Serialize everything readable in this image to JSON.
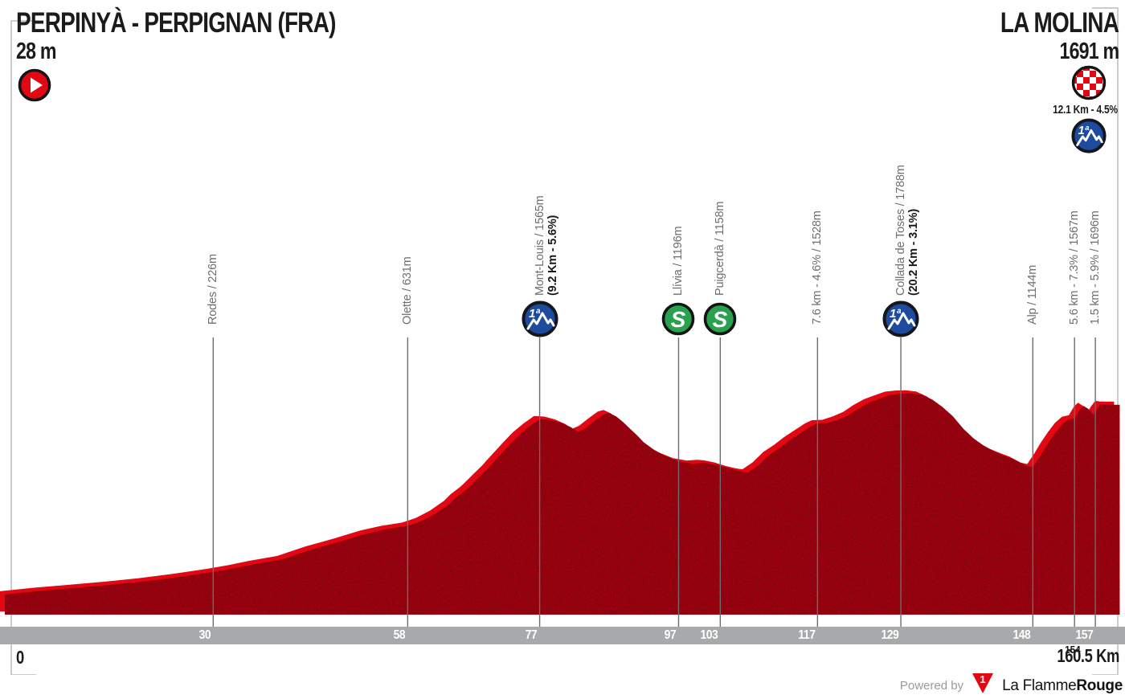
{
  "header": {
    "start_name": "PERPINYÀ - PERPIGNAN (FRA)",
    "start_elevation": "28 m",
    "finish_name": "LA MOLINA",
    "finish_elevation": "1691 m",
    "finish_climb_stats": "12.1 Km - 4.5%"
  },
  "icons": {
    "start": "play-icon",
    "finish": "checkered-flag-icon",
    "cat1_label": "1ª",
    "sprint_label": "S"
  },
  "colors": {
    "profile_fill": "#ab1016",
    "profile_edge": "#e30613",
    "axis_band": "#a7a9ab",
    "cat1_blue": "#1e4b9e",
    "sprint_green": "#28a24e",
    "label_gray": "#6d6e70",
    "marker_line": "#6b6c6e"
  },
  "axis": {
    "start_label": "0",
    "end_label": "160.5 Km",
    "band_ticks": [
      30,
      58,
      77,
      97,
      103,
      117,
      129,
      148,
      157
    ],
    "below_ticks": [
      154
    ]
  },
  "footer": {
    "powered_by": "Powered by",
    "brand_regular": "La Flamme",
    "brand_bold": "Rouge",
    "brand_badge": "1"
  },
  "chart_data": {
    "type": "area",
    "x_unit": "km",
    "y_unit": "m",
    "x_range": [
      0,
      160.5
    ],
    "grid": false,
    "start": {
      "name": "Perpinyà - Perpignan (FRA)",
      "elevation_m": 28
    },
    "finish": {
      "name": "La Molina",
      "elevation_m": 1691,
      "final_climb": "12.1 Km - 4.5%"
    },
    "markers": [
      {
        "km": 30,
        "label": "Rodes / 226m",
        "type": "landmark"
      },
      {
        "km": 58,
        "label": "Olette / 631m",
        "type": "landmark"
      },
      {
        "km": 77,
        "label": "Mont-Louis / 1565m",
        "stats": "(9.2 Km - 5.6%)",
        "type": "climb-cat1"
      },
      {
        "km": 97,
        "label": "Llívia / 1196m",
        "type": "sprint"
      },
      {
        "km": 103,
        "label": "Puigcerdà / 1158m",
        "type": "sprint"
      },
      {
        "km": 117,
        "label": "7.6 km - 4.6% / 1528m",
        "type": "landmark"
      },
      {
        "km": 129,
        "label": "Collada de Toses / 1788m",
        "stats": "(20.2 Km - 3.1%)",
        "type": "climb-cat1"
      },
      {
        "km": 148,
        "label": "Alp / 1144m",
        "type": "landmark"
      },
      {
        "km": 154,
        "label": "5.6 km - 7.3% / 1567m",
        "type": "landmark"
      },
      {
        "km": 157,
        "label": "1.5 km - 5.9% / 1696m",
        "type": "landmark"
      }
    ],
    "profile_points": [
      [
        0,
        28
      ],
      [
        5,
        60
      ],
      [
        10,
        85
      ],
      [
        15,
        112
      ],
      [
        20,
        142
      ],
      [
        25,
        182
      ],
      [
        30,
        226
      ],
      [
        33,
        258
      ],
      [
        36,
        296
      ],
      [
        40,
        338
      ],
      [
        44,
        420
      ],
      [
        48,
        487
      ],
      [
        52,
        562
      ],
      [
        55,
        602
      ],
      [
        58,
        631
      ],
      [
        60,
        672
      ],
      [
        62,
        735
      ],
      [
        64,
        820
      ],
      [
        65,
        880
      ],
      [
        66.5,
        950
      ],
      [
        68,
        1040
      ],
      [
        69.5,
        1130
      ],
      [
        71,
        1230
      ],
      [
        72.5,
        1330
      ],
      [
        74,
        1425
      ],
      [
        75.5,
        1500
      ],
      [
        77,
        1565
      ],
      [
        78.5,
        1560
      ],
      [
        80,
        1535
      ],
      [
        81.5,
        1495
      ],
      [
        82.5,
        1452
      ],
      [
        83.5,
        1480
      ],
      [
        85,
        1552
      ],
      [
        86.2,
        1605
      ],
      [
        87,
        1618
      ],
      [
        88,
        1590
      ],
      [
        89,
        1540
      ],
      [
        90,
        1482
      ],
      [
        91,
        1425
      ],
      [
        92,
        1362
      ],
      [
        93.5,
        1295
      ],
      [
        95,
        1245
      ],
      [
        97,
        1196
      ],
      [
        99,
        1174
      ],
      [
        100.5,
        1182
      ],
      [
        101.5,
        1176
      ],
      [
        103,
        1158
      ],
      [
        104.5,
        1128
      ],
      [
        106,
        1106
      ],
      [
        107,
        1098
      ],
      [
        108.5,
        1160
      ],
      [
        110,
        1250
      ],
      [
        111.5,
        1310
      ],
      [
        113,
        1380
      ],
      [
        114.5,
        1440
      ],
      [
        116,
        1500
      ],
      [
        117,
        1528
      ],
      [
        118.5,
        1532
      ],
      [
        120,
        1562
      ],
      [
        121.5,
        1600
      ],
      [
        123,
        1662
      ],
      [
        124.5,
        1712
      ],
      [
        126,
        1746
      ],
      [
        127.5,
        1778
      ],
      [
        129,
        1788
      ],
      [
        130.5,
        1791
      ],
      [
        132,
        1780
      ],
      [
        133.5,
        1738
      ],
      [
        135,
        1672
      ],
      [
        136.5,
        1590
      ],
      [
        138,
        1480
      ],
      [
        139.5,
        1395
      ],
      [
        141,
        1330
      ],
      [
        142.5,
        1280
      ],
      [
        144,
        1242
      ],
      [
        145.5,
        1208
      ],
      [
        147,
        1158
      ],
      [
        148,
        1144
      ],
      [
        149,
        1235
      ],
      [
        150,
        1335
      ],
      [
        151,
        1425
      ],
      [
        152,
        1505
      ],
      [
        153,
        1558
      ],
      [
        154,
        1572
      ],
      [
        154.7,
        1645
      ],
      [
        155.3,
        1682
      ],
      [
        156,
        1655
      ],
      [
        156.7,
        1602
      ],
      [
        157.2,
        1650
      ],
      [
        157.8,
        1698
      ],
      [
        158.5,
        1692
      ],
      [
        160.5,
        1691
      ]
    ]
  }
}
